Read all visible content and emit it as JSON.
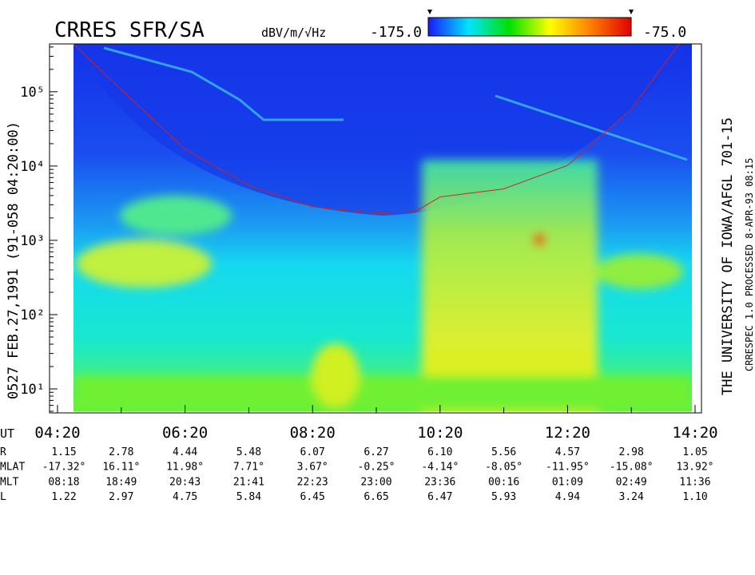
{
  "chart_data": {
    "type": "spectrogram",
    "title": "CRRES SFR/SA",
    "left_caption": "0527   FEB.27,1991   (91-058 04:20:00)",
    "right_caption": "THE UNIVERSITY OF IOWA/AFGL 701-15",
    "right_caption_2": "CRRESPEC 1.0   PROCESSED  8-APR-93  08:15",
    "colorbar": {
      "unit": "dBV/m/√Hz",
      "ticks": [
        {
          "value": -175,
          "label": "-175.0"
        },
        {
          "value": -75,
          "label": "-75.0"
        }
      ],
      "colors": [
        "#1a1aff",
        "#00e5ff",
        "#00e000",
        "#ffff00",
        "#ff7f00",
        "#e00000"
      ]
    },
    "ylog": true,
    "ylim": [
      5,
      440000
    ],
    "yticks": [
      {
        "value": 10,
        "label": "10¹"
      },
      {
        "value": 100,
        "label": "10²"
      },
      {
        "value": 1000,
        "label": "10³"
      },
      {
        "value": 10000,
        "label": "10⁴"
      },
      {
        "value": 100000,
        "label": "10⁵"
      }
    ],
    "xlim": [
      260,
      860
    ],
    "xticks": [
      {
        "value": 260,
        "label": "04:20"
      },
      {
        "value": 380,
        "label": "06:20"
      },
      {
        "value": 500,
        "label": "08:20"
      },
      {
        "value": 620,
        "label": "10:20"
      },
      {
        "value": 740,
        "label": "12:20"
      },
      {
        "value": 860,
        "label": "14:20"
      }
    ],
    "xminorticks": [
      320,
      440,
      560,
      680,
      800
    ],
    "series": [
      {
        "color": "#d02020",
        "x": [
          275,
          319,
          380,
          440,
          500,
          560,
          597,
          620,
          680,
          740,
          800,
          845
        ],
        "values": [
          440000,
          110000,
          16900,
          5500,
          2840,
          2330,
          2450,
          3840,
          4930,
          10200,
          58600,
          440000
        ]
      }
    ],
    "ephemeris": {
      "ut_label": "UT",
      "positions": [
        260,
        320,
        380,
        440,
        500,
        560,
        620,
        680,
        740,
        800,
        860
      ],
      "rows": [
        {
          "name": "R",
          "values": [
            "1.15",
            "2.78",
            "4.44",
            "5.48",
            "6.07",
            "6.27",
            "6.10",
            "5.56",
            "4.57",
            "2.98",
            "1.05"
          ]
        },
        {
          "name": "MLAT",
          "values": [
            "-17.32°",
            "16.11°",
            "11.98°",
            "7.71°",
            "3.67°",
            "-0.25°",
            "-4.14°",
            "-8.05°",
            "-11.95°",
            "-15.08°",
            "13.92°"
          ]
        },
        {
          "name": "MLT",
          "values": [
            "08:18",
            "18:49",
            "20:43",
            "21:41",
            "22:23",
            "23:00",
            "23:36",
            "00:16",
            "01:09",
            "02:49",
            "11:36"
          ]
        },
        {
          "name": "L",
          "values": [
            "1.22",
            "2.97",
            "4.75",
            "5.84",
            "6.45",
            "6.65",
            "6.47",
            "5.93",
            "4.94",
            "3.24",
            "1.10"
          ]
        }
      ]
    }
  }
}
